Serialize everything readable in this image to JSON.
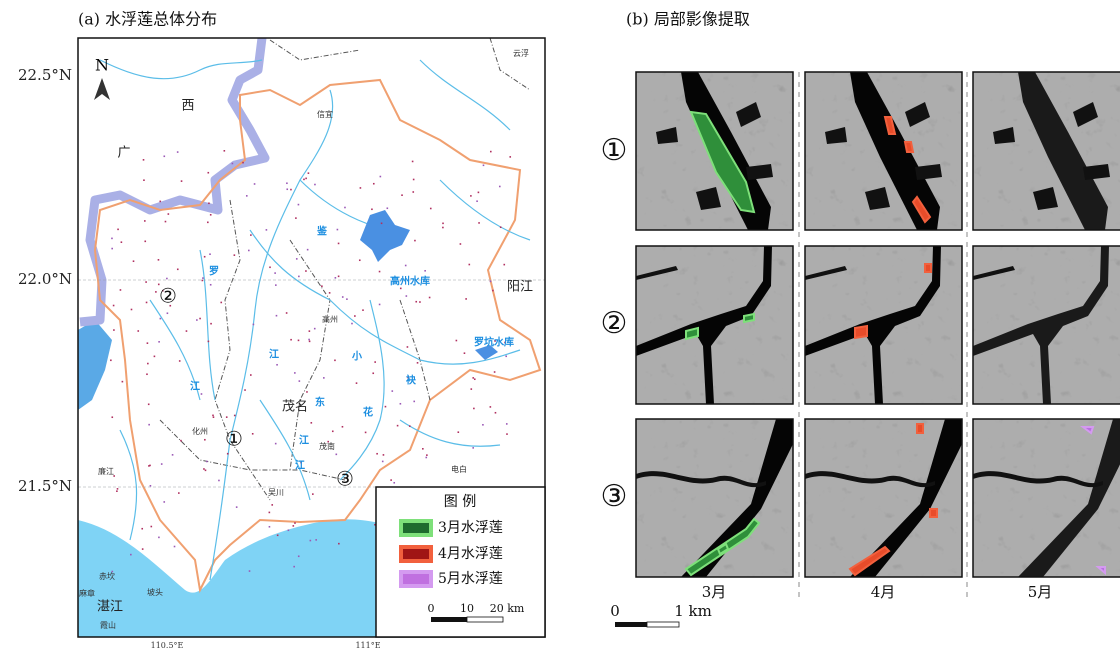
{
  "panel_a": {
    "title": "(a) 水浮莲总体分布",
    "lat_labels": [
      "22.5°N",
      "22.0°N",
      "21.5°N"
    ],
    "lon_labels": [
      "110.5°E",
      "111°E"
    ],
    "north": "N",
    "place_labels": [
      "西",
      "广",
      "云浮",
      "信宜",
      "鉴",
      "高州水库",
      "阳江",
      "罗坑水库",
      "罗",
      "江",
      "小",
      "袂",
      "江",
      "东",
      "茂名",
      "高州",
      "化州",
      "花",
      "江",
      "茂南",
      "江",
      "廉江",
      "电白",
      "吴川",
      "赤坎",
      "坡头",
      "麻章",
      "湛江",
      "霞山"
    ],
    "site_labels": [
      "①",
      "②",
      "③"
    ],
    "legend": {
      "title": "图 例",
      "items": [
        "3月水浮莲",
        "4月水浮莲",
        "5月水浮莲"
      ],
      "scale_labels": [
        "0",
        "10",
        "20 km"
      ]
    }
  },
  "panel_b": {
    "title": "(b) 局部影像提取",
    "row_labels": [
      "①",
      "②",
      "③"
    ],
    "column_labels": [
      "3月",
      "4月",
      "5月"
    ],
    "scale_labels": [
      "0",
      "1 km"
    ]
  }
}
